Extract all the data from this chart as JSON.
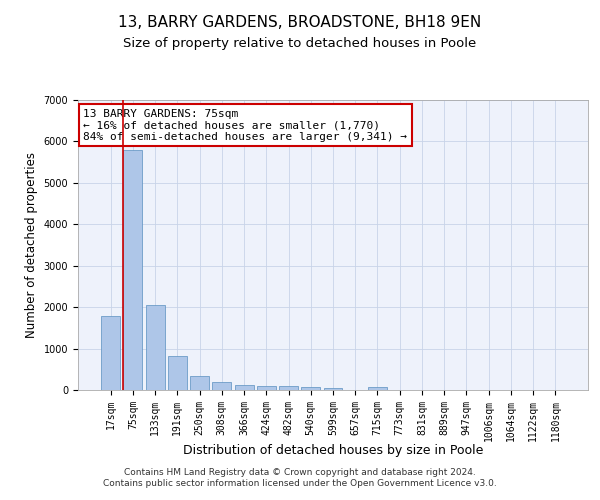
{
  "title": "13, BARRY GARDENS, BROADSTONE, BH18 9EN",
  "subtitle": "Size of property relative to detached houses in Poole",
  "xlabel": "Distribution of detached houses by size in Poole",
  "ylabel": "Number of detached properties",
  "footer_line1": "Contains HM Land Registry data © Crown copyright and database right 2024.",
  "footer_line2": "Contains public sector information licensed under the Open Government Licence v3.0.",
  "annotation_line1": "13 BARRY GARDENS: 75sqm",
  "annotation_line2": "← 16% of detached houses are smaller (1,770)",
  "annotation_line3": "84% of semi-detached houses are larger (9,341) →",
  "bar_labels": [
    "17sqm",
    "75sqm",
    "133sqm",
    "191sqm",
    "250sqm",
    "308sqm",
    "366sqm",
    "424sqm",
    "482sqm",
    "540sqm",
    "599sqm",
    "657sqm",
    "715sqm",
    "773sqm",
    "831sqm",
    "889sqm",
    "947sqm",
    "1006sqm",
    "1064sqm",
    "1122sqm",
    "1180sqm"
  ],
  "bar_values": [
    1780,
    5800,
    2050,
    820,
    340,
    190,
    120,
    100,
    95,
    80,
    60,
    5,
    80,
    10,
    5,
    3,
    2,
    2,
    1,
    1,
    1
  ],
  "bar_color": "#aec6e8",
  "bar_edge_color": "#5a8fc0",
  "highlight_bar_index": 1,
  "red_line_x": 1,
  "ylim": [
    0,
    7000
  ],
  "background_color": "#eef2fb",
  "grid_color": "#c8d4e8",
  "annotation_box_color": "#ffffff",
  "annotation_box_edge_color": "#cc0000",
  "red_line_color": "#cc0000",
  "title_fontsize": 11,
  "subtitle_fontsize": 9.5,
  "xlabel_fontsize": 9,
  "ylabel_fontsize": 8.5,
  "tick_fontsize": 7,
  "footer_fontsize": 6.5,
  "annotation_fontsize": 8
}
